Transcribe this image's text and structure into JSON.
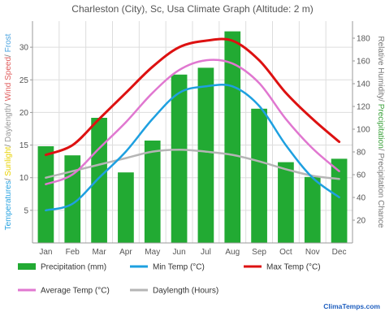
{
  "chart_data": {
    "type": "bar",
    "title": "Charleston (City), Sc, Usa Climate Graph (Altitude: 2 m)",
    "categories": [
      "Jan",
      "Feb",
      "Mar",
      "Apr",
      "May",
      "Jun",
      "Jul",
      "Aug",
      "Sep",
      "Oct",
      "Nov",
      "Dec"
    ],
    "left_axis": {
      "label_parts": [
        {
          "text": "Temperatures",
          "color": "#2aa3e0"
        },
        {
          "text": "/ ",
          "color": "#777777"
        },
        {
          "text": "Sunlight",
          "color": "#e8d100"
        },
        {
          "text": "/ ",
          "color": "#777777"
        },
        {
          "text": "Daylength",
          "color": "#999999"
        },
        {
          "text": "/ ",
          "color": "#777777"
        },
        {
          "text": "Wind Speed",
          "color": "#e06060"
        },
        {
          "text": "/ ",
          "color": "#777777"
        },
        {
          "text": "Frost",
          "color": "#4aa3e0"
        }
      ],
      "ylim": [
        0,
        34
      ],
      "ticks": [
        5,
        10,
        15,
        20,
        25,
        30
      ]
    },
    "right_axis": {
      "label_parts": [
        {
          "text": "Relative Humidity",
          "color": "#777777"
        },
        {
          "text": "/ ",
          "color": "#777777"
        },
        {
          "text": "Precipitation",
          "color": "#3aa13a"
        },
        {
          "text": "/ ",
          "color": "#777777"
        },
        {
          "text": "Precipitation Chance",
          "color": "#777777"
        }
      ],
      "ylim": [
        0,
        195
      ],
      "ticks": [
        20,
        40,
        60,
        80,
        100,
        120,
        140,
        160,
        180
      ]
    },
    "grid": true,
    "legend_position": "bottom",
    "series": [
      {
        "name": "Precipitation (mm)",
        "kind": "bar",
        "axis": "right",
        "color": "#22aa33",
        "values": [
          85,
          77,
          110,
          62,
          90,
          148,
          154,
          186,
          118,
          71,
          58,
          74
        ]
      },
      {
        "name": "Min Temp (°C)",
        "kind": "line",
        "axis": "left",
        "color": "#1ea0e0",
        "values": [
          5,
          6,
          10,
          14,
          19,
          23,
          24,
          24,
          21,
          15,
          10,
          7
        ]
      },
      {
        "name": "Max Temp (°C)",
        "kind": "line",
        "axis": "left",
        "color": "#dd1111",
        "values": [
          13.5,
          15,
          19,
          23,
          27,
          30,
          31,
          31,
          28,
          23,
          19,
          15.5
        ]
      },
      {
        "name": "Average Temp (°C)",
        "kind": "line",
        "axis": "left",
        "color": "#e077d0",
        "values": [
          9,
          10.5,
          14.5,
          18.5,
          23,
          26.5,
          28,
          27.5,
          24.5,
          19,
          14.5,
          11
        ]
      },
      {
        "name": "Daylength (Hours)",
        "kind": "line",
        "axis": "left",
        "color": "#b5b5b5",
        "values": [
          10,
          11,
          12,
          13,
          14,
          14.3,
          14,
          13.5,
          12.5,
          11.3,
          10.3,
          9.8
        ]
      }
    ],
    "legend": [
      {
        "label": "Precipitation (mm)",
        "color": "#22aa33"
      },
      {
        "label": "Min Temp (°C)",
        "color": "#1ea0e0"
      },
      {
        "label": "Max Temp (°C)",
        "color": "#dd1111"
      },
      {
        "label": "Average Temp (°C)",
        "color": "#e077d0"
      },
      {
        "label": "Daylength (Hours)",
        "color": "#b5b5b5"
      }
    ],
    "brand": "ClimaTemps.com",
    "colors": {
      "grid": "#dddddd",
      "axis": "#999999"
    }
  }
}
